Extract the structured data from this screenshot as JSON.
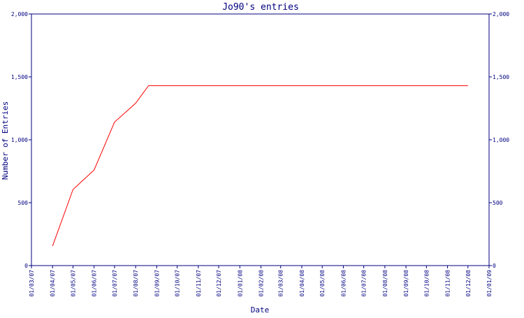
{
  "chart_data": {
    "type": "line",
    "title": "Jo90's entries",
    "xlabel": "Date",
    "ylabel": "Number of Entries",
    "ylim": [
      0,
      2000
    ],
    "xlim": [
      "2007-03-01",
      "2009-01-01"
    ],
    "y_ticks": [
      0,
      500,
      1000,
      1500,
      2000
    ],
    "y_tick_labels": [
      "0",
      "500",
      "1,000",
      "1,500",
      "2,000"
    ],
    "x_ticks": [
      "2007-03-01",
      "2007-04-01",
      "2007-05-01",
      "2007-06-01",
      "2007-07-01",
      "2007-08-01",
      "2007-09-01",
      "2007-10-01",
      "2007-11-01",
      "2007-12-01",
      "2008-01-01",
      "2008-02-01",
      "2008-03-01",
      "2008-04-01",
      "2008-05-01",
      "2008-06-01",
      "2008-07-01",
      "2008-08-01",
      "2008-09-01",
      "2008-10-01",
      "2008-11-01",
      "2008-12-01",
      "2009-01-01"
    ],
    "x_tick_labels": [
      "01/03/07",
      "01/04/07",
      "01/05/07",
      "01/06/07",
      "01/07/07",
      "01/08/07",
      "01/09/07",
      "01/10/07",
      "01/11/07",
      "01/12/07",
      "01/01/08",
      "01/02/08",
      "01/03/08",
      "01/04/08",
      "01/05/08",
      "01/06/08",
      "01/07/08",
      "01/08/08",
      "01/09/08",
      "01/10/08",
      "01/11/08",
      "01/12/08",
      "01/01/09"
    ],
    "grid": false,
    "series": [
      {
        "color": "#ff0000",
        "x": [
          "2007-04-01",
          "2007-05-01",
          "2007-06-01",
          "2007-07-01",
          "2007-08-01",
          "2007-08-20",
          "2008-12-01"
        ],
        "y": [
          155,
          605,
          760,
          1140,
          1290,
          1430,
          1430
        ]
      }
    ],
    "colors": {
      "axis": "#000080",
      "text": "#000080",
      "line": "#ff0000",
      "background": "#ffffff"
    }
  }
}
